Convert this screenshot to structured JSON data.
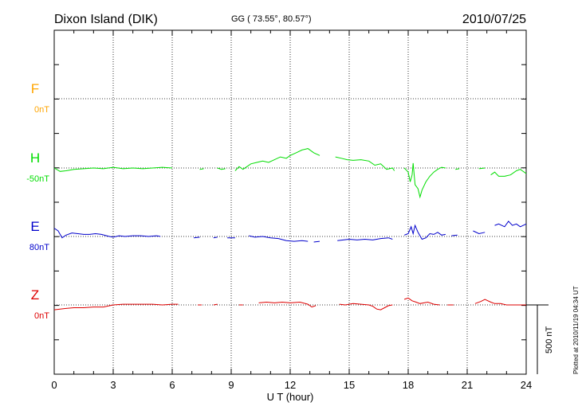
{
  "chart_data": {
    "type": "line",
    "station": "Dixon Island (DIK)",
    "coords": "GG ( 73.55°,  80.57°)",
    "date": "2010/07/25",
    "xlabel": "U T (hour)",
    "xlim": [
      0,
      24
    ],
    "x_ticks": [
      "0",
      "3",
      "6",
      "9",
      "12",
      "15",
      "18",
      "21",
      "24"
    ],
    "scale_label": "500 nT",
    "footer": "Plotted at 2010/11/19 04:34 UT",
    "series": [
      {
        "name": "F",
        "baseline_label": "0nT",
        "color": "#FFA500",
        "points": []
      },
      {
        "name": "H",
        "baseline_label": "-50nT",
        "color": "#00DD00",
        "points": [
          [
            0,
            0
          ],
          [
            0.3,
            -25
          ],
          [
            0.6,
            -20
          ],
          [
            1,
            -10
          ],
          [
            1.5,
            -5
          ],
          [
            2,
            0
          ],
          [
            2.5,
            -5
          ],
          [
            3,
            5
          ],
          [
            3.5,
            -5
          ],
          [
            4,
            0
          ],
          [
            4.5,
            -5
          ],
          [
            5,
            0
          ],
          [
            5.5,
            5
          ],
          [
            6,
            0
          ],
          null,
          [
            7.4,
            -10
          ],
          [
            7.6,
            -5
          ],
          null,
          [
            8.3,
            0
          ],
          [
            8.5,
            -10
          ],
          [
            8.7,
            -5
          ],
          null,
          [
            9.2,
            -20
          ],
          [
            9.4,
            10
          ],
          [
            9.6,
            -10
          ],
          [
            9.8,
            10
          ],
          [
            10,
            30
          ],
          [
            10.3,
            40
          ],
          [
            10.6,
            50
          ],
          [
            10.9,
            40
          ],
          [
            11.2,
            60
          ],
          [
            11.5,
            80
          ],
          [
            11.8,
            70
          ],
          [
            12,
            90
          ],
          [
            12.3,
            110
          ],
          [
            12.6,
            130
          ],
          [
            12.9,
            140
          ],
          [
            13.2,
            110
          ],
          [
            13.5,
            90
          ],
          null,
          [
            14.3,
            80
          ],
          [
            14.6,
            70
          ],
          [
            14.9,
            60
          ],
          [
            15.2,
            55
          ],
          [
            15.6,
            60
          ],
          [
            16,
            50
          ],
          [
            16.3,
            20
          ],
          [
            16.6,
            30
          ],
          [
            16.9,
            -10
          ],
          [
            17.2,
            0
          ],
          [
            17.3,
            -20
          ],
          null,
          [
            17.8,
            0
          ],
          [
            18,
            -30
          ],
          [
            18.1,
            -100
          ],
          [
            18.2,
            -50
          ],
          [
            18.25,
            35
          ],
          [
            18.35,
            -120
          ],
          [
            18.5,
            -150
          ],
          [
            18.6,
            -210
          ],
          [
            18.7,
            -160
          ],
          [
            18.9,
            -100
          ],
          [
            19.1,
            -60
          ],
          [
            19.3,
            -30
          ],
          [
            19.5,
            -10
          ],
          [
            19.7,
            5
          ],
          [
            19.9,
            0
          ],
          null,
          [
            20.4,
            -10
          ],
          [
            20.6,
            -5
          ],
          null,
          [
            21.6,
            -5
          ],
          [
            21.9,
            0
          ],
          null,
          [
            22.2,
            -50
          ],
          [
            22.4,
            -30
          ],
          [
            22.6,
            -60
          ],
          [
            22.9,
            -60
          ],
          [
            23.2,
            -50
          ],
          [
            23.5,
            -20
          ],
          [
            23.7,
            -10
          ],
          [
            24,
            -40
          ]
        ]
      },
      {
        "name": "E",
        "baseline_label": "80nT",
        "color": "#0000CC",
        "points": [
          [
            0,
            60
          ],
          [
            0.2,
            40
          ],
          [
            0.4,
            -10
          ],
          [
            0.6,
            10
          ],
          [
            0.9,
            25
          ],
          [
            1.2,
            20
          ],
          [
            1.5,
            15
          ],
          [
            1.8,
            15
          ],
          [
            2.1,
            20
          ],
          [
            2.4,
            15
          ],
          [
            2.8,
            0
          ],
          [
            3,
            -5
          ],
          [
            3.3,
            5
          ],
          [
            3.6,
            0
          ],
          [
            4,
            5
          ],
          [
            4.4,
            5
          ],
          [
            4.8,
            0
          ],
          [
            5.2,
            5
          ],
          [
            5.4,
            0
          ],
          null,
          [
            7.1,
            -10
          ],
          [
            7.4,
            -5
          ],
          null,
          [
            8.1,
            -10
          ],
          [
            8.3,
            -5
          ],
          null,
          [
            8.8,
            -10
          ],
          [
            9.2,
            -10
          ],
          null,
          [
            9.9,
            5
          ],
          [
            10.2,
            -5
          ],
          [
            10.6,
            0
          ],
          [
            11,
            -10
          ],
          [
            11.4,
            -15
          ],
          [
            11.8,
            -30
          ],
          [
            12.2,
            -35
          ],
          [
            12.6,
            -30
          ],
          [
            12.9,
            -35
          ],
          null,
          [
            13.2,
            -40
          ],
          [
            13.5,
            -35
          ],
          null,
          [
            14.4,
            -30
          ],
          [
            14.7,
            -25
          ],
          [
            15,
            -20
          ],
          [
            15.4,
            -25
          ],
          [
            15.8,
            -20
          ],
          [
            16.2,
            -25
          ],
          [
            16.6,
            -15
          ],
          [
            17,
            -10
          ],
          [
            17.2,
            -20
          ],
          null,
          [
            17.8,
            10
          ],
          [
            18,
            20
          ],
          [
            18.15,
            70
          ],
          [
            18.25,
            20
          ],
          [
            18.35,
            80
          ],
          [
            18.5,
            30
          ],
          [
            18.7,
            -20
          ],
          [
            18.9,
            -10
          ],
          [
            19.1,
            20
          ],
          [
            19.3,
            15
          ],
          [
            19.5,
            30
          ],
          [
            19.7,
            10
          ],
          [
            19.9,
            15
          ],
          null,
          [
            20.2,
            5
          ],
          [
            20.5,
            10
          ],
          null,
          [
            21.3,
            40
          ],
          [
            21.6,
            20
          ],
          [
            21.9,
            30
          ],
          null,
          [
            22.4,
            80
          ],
          [
            22.6,
            90
          ],
          [
            22.9,
            70
          ],
          [
            23.1,
            110
          ],
          [
            23.3,
            80
          ],
          [
            23.5,
            90
          ],
          [
            23.7,
            70
          ],
          [
            24,
            90
          ]
        ]
      },
      {
        "name": "Z",
        "baseline_label": "0nT",
        "color": "#DD0000",
        "points": [
          [
            0,
            -35
          ],
          [
            0.3,
            -30
          ],
          [
            0.6,
            -25
          ],
          [
            1,
            -20
          ],
          [
            1.5,
            -20
          ],
          [
            2,
            -15
          ],
          [
            2.5,
            -15
          ],
          [
            3,
            0
          ],
          [
            3.5,
            5
          ],
          [
            4,
            5
          ],
          [
            4.5,
            5
          ],
          [
            5,
            5
          ],
          [
            5.5,
            0
          ],
          [
            6,
            5
          ],
          [
            6.3,
            5
          ],
          null,
          [
            7.3,
            0
          ],
          [
            7.5,
            0
          ],
          null,
          [
            8.1,
            0
          ],
          [
            8.3,
            5
          ],
          null,
          [
            9.4,
            0
          ],
          [
            9.6,
            0
          ],
          null,
          [
            10.4,
            15
          ],
          [
            10.8,
            20
          ],
          [
            11.2,
            15
          ],
          [
            11.6,
            20
          ],
          [
            12,
            15
          ],
          [
            12.5,
            20
          ],
          [
            12.9,
            5
          ],
          [
            13.1,
            -15
          ],
          [
            13.3,
            -5
          ],
          null,
          [
            14.5,
            5
          ],
          [
            14.8,
            0
          ],
          [
            15.2,
            10
          ],
          [
            15.6,
            5
          ],
          [
            16,
            0
          ],
          [
            16.2,
            -10
          ],
          [
            16.4,
            -30
          ],
          [
            16.6,
            -35
          ],
          [
            16.8,
            -20
          ],
          [
            17,
            -5
          ],
          [
            17.2,
            0
          ],
          null,
          [
            17.8,
            40
          ],
          [
            18,
            50
          ],
          [
            18.2,
            30
          ],
          [
            18.4,
            20
          ],
          [
            18.6,
            10
          ],
          [
            18.8,
            15
          ],
          [
            19,
            20
          ],
          [
            19.3,
            5
          ],
          [
            19.6,
            0
          ],
          null,
          [
            20,
            0
          ],
          [
            20.3,
            0
          ],
          null,
          [
            21.4,
            10
          ],
          [
            21.7,
            25
          ],
          [
            21.9,
            40
          ],
          [
            22.2,
            20
          ],
          [
            22.4,
            10
          ],
          [
            22.7,
            10
          ],
          [
            23,
            0
          ],
          [
            23.5,
            0
          ],
          [
            24,
            0
          ]
        ]
      }
    ]
  }
}
